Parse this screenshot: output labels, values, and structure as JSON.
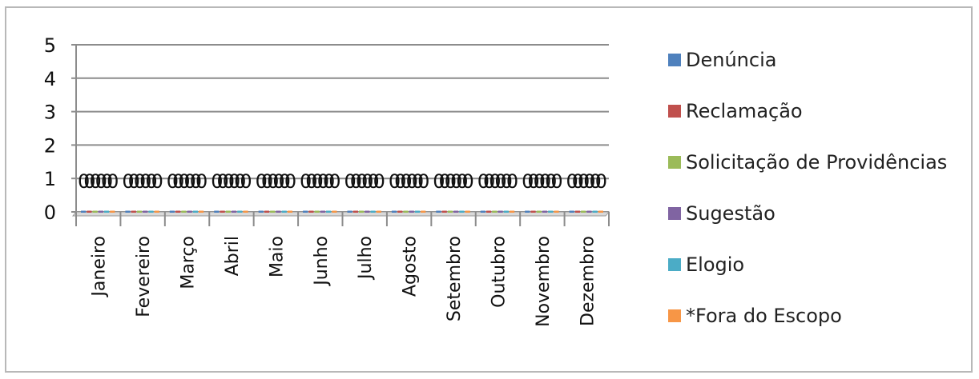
{
  "chart_data": {
    "type": "bar",
    "categories": [
      "Janeiro",
      "Fevereiro",
      "Março",
      "Abril",
      "Maio",
      "Junho",
      "Julho",
      "Agosto",
      "Setembro",
      "Outubro",
      "Novembro",
      "Dezembro"
    ],
    "series": [
      {
        "name": "Denúncia",
        "color": "#4f81bd",
        "values": [
          0,
          0,
          0,
          0,
          0,
          0,
          0,
          0,
          0,
          0,
          0,
          0
        ]
      },
      {
        "name": "Reclamação",
        "color": "#c0504d",
        "values": [
          0,
          0,
          0,
          0,
          0,
          0,
          0,
          0,
          0,
          0,
          0,
          0
        ]
      },
      {
        "name": "Solicitação de Providências",
        "color": "#9bbb59",
        "values": [
          0,
          0,
          0,
          0,
          0,
          0,
          0,
          0,
          0,
          0,
          0,
          0
        ]
      },
      {
        "name": "Sugestão",
        "color": "#8064a2",
        "values": [
          0,
          0,
          0,
          0,
          0,
          0,
          0,
          0,
          0,
          0,
          0,
          0
        ]
      },
      {
        "name": "Elogio",
        "color": "#4bacc6",
        "values": [
          0,
          0,
          0,
          0,
          0,
          0,
          0,
          0,
          0,
          0,
          0,
          0
        ]
      },
      {
        "name": "*Fora do Escopo",
        "color": "#f79646",
        "values": [
          0,
          0,
          0,
          0,
          0,
          0,
          0,
          0,
          0,
          0,
          0,
          0
        ]
      }
    ],
    "yticks": [
      "0",
      "1",
      "2",
      "3",
      "4",
      "5"
    ],
    "ylim": [
      0,
      5
    ],
    "grid": true,
    "data_labels": true,
    "legend_position": "right"
  }
}
